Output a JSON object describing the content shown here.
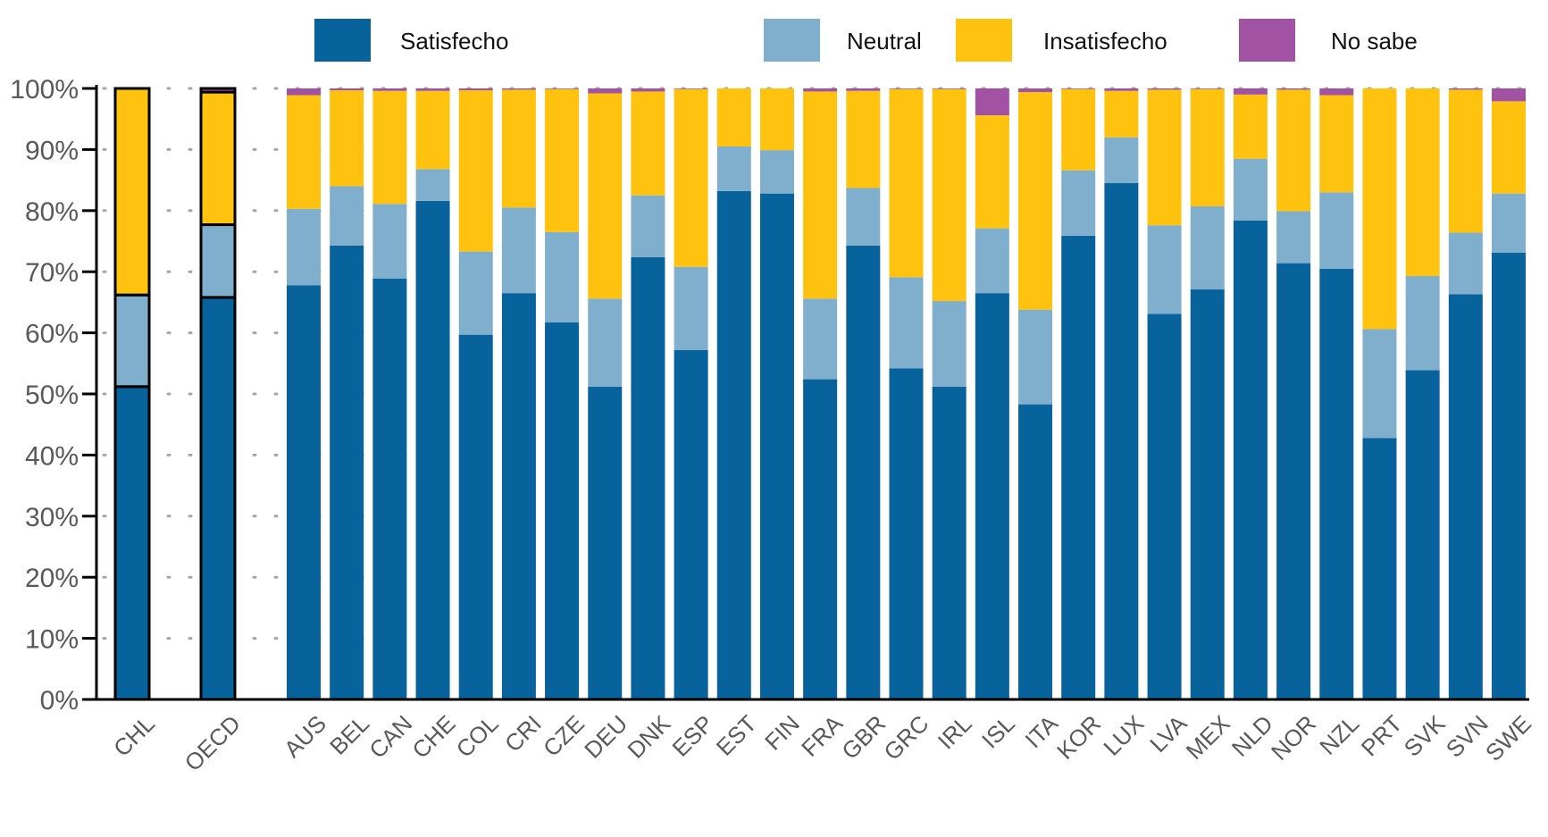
{
  "chart_data": {
    "type": "bar",
    "stacked": true,
    "title": "",
    "xlabel": "",
    "ylabel": "",
    "ylim": [
      0,
      100
    ],
    "yticks": [
      "0%",
      "10%",
      "20%",
      "30%",
      "40%",
      "50%",
      "60%",
      "70%",
      "80%",
      "90%",
      "100%"
    ],
    "grid": "horizontal dotted",
    "legend_position": "top",
    "legend": [
      {
        "name": "Satisfecho",
        "color": "#08629c"
      },
      {
        "name": "Neutral",
        "color": "#7fafcc"
      },
      {
        "name": "Insatisfecho",
        "color": "#ffc20e"
      },
      {
        "name": "No sabe",
        "color": "#a152a2"
      }
    ],
    "highlighted_categories": [
      "CHL",
      "OECD"
    ],
    "categories": [
      "CHL",
      "OECD",
      "AUS",
      "BEL",
      "CAN",
      "CHE",
      "COL",
      "CRI",
      "CZE",
      "DEU",
      "DNK",
      "ESP",
      "EST",
      "FIN",
      "FRA",
      "GBR",
      "GRC",
      "IRL",
      "ISL",
      "ITA",
      "KOR",
      "LUX",
      "LVA",
      "MEX",
      "NLD",
      "NOR",
      "NZL",
      "PRT",
      "SVK",
      "SVN",
      "SWE"
    ],
    "series": [
      {
        "name": "Satisfecho",
        "values": [
          51.2,
          65.8,
          67.8,
          74.3,
          68.9,
          81.6,
          59.7,
          66.5,
          61.7,
          51.2,
          72.4,
          57.2,
          83.2,
          82.8,
          52.4,
          74.3,
          54.2,
          51.2,
          66.5,
          48.3,
          75.9,
          84.5,
          63.1,
          67.1,
          78.4,
          71.4,
          70.5,
          42.8,
          53.9,
          66.3,
          73.1
        ]
      },
      {
        "name": "Neutral",
        "values": [
          15.0,
          11.9,
          12.5,
          9.7,
          12.2,
          5.2,
          13.6,
          14.0,
          14.8,
          14.4,
          10.1,
          13.6,
          7.3,
          7.1,
          13.2,
          9.4,
          14.9,
          14.0,
          10.6,
          15.5,
          10.7,
          7.5,
          14.5,
          13.6,
          10.1,
          8.5,
          12.5,
          17.8,
          15.4,
          10.1,
          9.7
        ]
      },
      {
        "name": "Insatisfecho",
        "values": [
          33.8,
          21.7,
          18.6,
          15.7,
          18.5,
          12.8,
          26.4,
          19.3,
          23.4,
          33.6,
          17.0,
          29.1,
          9.5,
          10.1,
          33.9,
          15.9,
          30.8,
          34.7,
          18.5,
          35.6,
          13.3,
          7.6,
          22.2,
          19.2,
          10.5,
          19.9,
          15.9,
          39.4,
          30.7,
          23.4,
          15.1
        ]
      },
      {
        "name": "No sabe",
        "values": [
          0.0,
          0.6,
          1.1,
          0.3,
          0.4,
          0.4,
          0.3,
          0.2,
          0.1,
          0.8,
          0.5,
          0.1,
          0.0,
          0.0,
          0.5,
          0.4,
          0.1,
          0.1,
          4.4,
          0.6,
          0.1,
          0.4,
          0.2,
          0.1,
          1.0,
          0.2,
          1.1,
          0.0,
          0.0,
          0.2,
          2.1
        ]
      }
    ]
  }
}
